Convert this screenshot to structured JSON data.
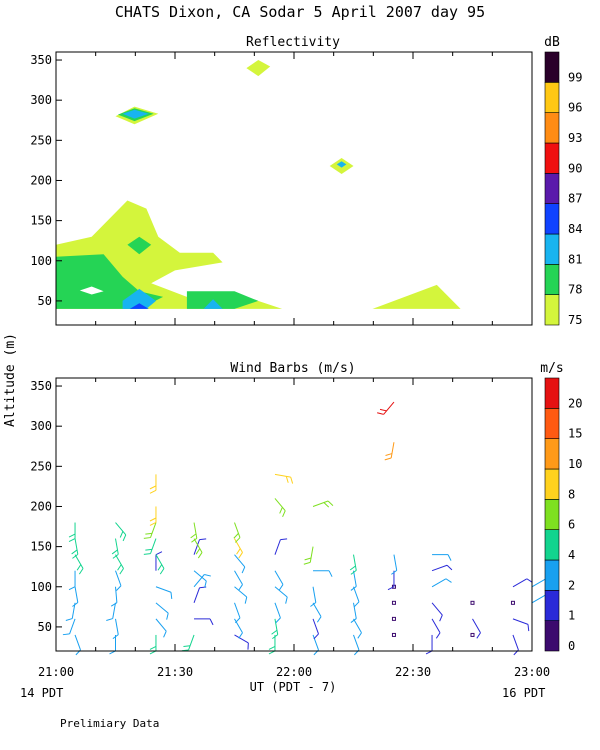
{
  "title": "CHATS Dixon, CA  Sodar    5 April 2007   day  95",
  "footer_left": "14 PDT",
  "footer_right": "16 PDT",
  "xlabel": "UT  (PDT - 7)",
  "ylabel": "Altitude (m)",
  "note": "Prelimiary Data",
  "chart_data": [
    {
      "type": "heatmap",
      "title": "Reflectivity",
      "ylim": [
        20,
        360
      ],
      "xlim": [
        21.0,
        23.0
      ],
      "yticks": [
        "50",
        "100",
        "150",
        "200",
        "250",
        "300",
        "350"
      ],
      "colorbar": {
        "unit": "dB",
        "labels": [
          "75",
          "78",
          "81",
          "84",
          "87",
          "90",
          "93",
          "96",
          "99"
        ],
        "colors": [
          "#d4f53c",
          "#25d455",
          "#18b4f0",
          "#1043ff",
          "#5a1aab",
          "#f01010",
          "#ff8c14",
          "#ffc814",
          "#2a002a"
        ]
      },
      "regions": [
        {
          "level": "75",
          "points": [
            [
              21.0,
              120
            ],
            [
              21.15,
              130
            ],
            [
              21.3,
              175
            ],
            [
              21.38,
              165
            ],
            [
              21.43,
              130
            ],
            [
              21.52,
              110
            ],
            [
              21.66,
              110
            ],
            [
              21.7,
              98
            ],
            [
              21.5,
              88
            ],
            [
              21.4,
              72
            ],
            [
              21.55,
              55
            ],
            [
              21.75,
              60
            ],
            [
              21.95,
              40
            ],
            [
              21.0,
              40
            ]
          ]
        },
        {
          "level": "75",
          "points": [
            [
              22.33,
              40
            ],
            [
              22.6,
              70
            ],
            [
              22.7,
              40
            ]
          ]
        },
        {
          "level": "75",
          "points": [
            [
              22.15,
              218
            ],
            [
              22.2,
              228
            ],
            [
              22.25,
              218
            ],
            [
              22.2,
              208
            ]
          ]
        },
        {
          "level": "75",
          "points": [
            [
              21.8,
              340
            ],
            [
              21.85,
              350
            ],
            [
              21.9,
              342
            ],
            [
              21.85,
              330
            ]
          ]
        },
        {
          "level": "75",
          "points": [
            [
              21.25,
              280
            ],
            [
              21.33,
              292
            ],
            [
              21.43,
              283
            ],
            [
              21.33,
              270
            ]
          ]
        },
        {
          "level": "78",
          "points": [
            [
              21.0,
              105
            ],
            [
              21.2,
              108
            ],
            [
              21.28,
              80
            ],
            [
              21.35,
              62
            ],
            [
              21.45,
              55
            ],
            [
              21.35,
              40
            ],
            [
              21.0,
              40
            ]
          ]
        },
        {
          "level": "78",
          "points": [
            [
              21.3,
              120
            ],
            [
              21.35,
              130
            ],
            [
              21.4,
              120
            ],
            [
              21.35,
              108
            ]
          ]
        },
        {
          "level": "78",
          "points": [
            [
              21.55,
              62
            ],
            [
              21.75,
              62
            ],
            [
              21.85,
              50
            ],
            [
              21.75,
              40
            ],
            [
              21.55,
              40
            ]
          ]
        },
        {
          "level": "78",
          "points": [
            [
              21.26,
              282
            ],
            [
              21.33,
              290
            ],
            [
              21.41,
              283
            ],
            [
              21.33,
              274
            ]
          ]
        },
        {
          "level": "81",
          "points": [
            [
              21.28,
              50
            ],
            [
              21.35,
              65
            ],
            [
              21.42,
              50
            ],
            [
              21.38,
              40
            ],
            [
              21.28,
              40
            ]
          ]
        },
        {
          "level": "81",
          "points": [
            [
              21.62,
              40
            ],
            [
              21.66,
              52
            ],
            [
              21.7,
              40
            ]
          ]
        },
        {
          "level": "81",
          "points": [
            [
              21.28,
              283
            ],
            [
              21.33,
              288
            ],
            [
              21.39,
              283
            ],
            [
              21.33,
              277
            ]
          ]
        },
        {
          "level": "81",
          "points": [
            [
              22.18,
              220
            ],
            [
              22.2,
              224
            ],
            [
              22.22,
              220
            ],
            [
              22.2,
              216
            ]
          ]
        },
        {
          "level": "84",
          "points": [
            [
              21.31,
              40
            ],
            [
              21.35,
              47
            ],
            [
              21.39,
              40
            ]
          ]
        }
      ],
      "holes": [
        {
          "points": [
            [
              21.1,
              63
            ],
            [
              21.15,
              68
            ],
            [
              21.2,
              62
            ],
            [
              21.15,
              58
            ]
          ]
        }
      ]
    },
    {
      "type": "scatter",
      "title": "Wind Barbs (m/s)",
      "ylim": [
        20,
        360
      ],
      "xlim": [
        21.0,
        23.0
      ],
      "yticks": [
        "50",
        "100",
        "150",
        "200",
        "250",
        "300",
        "350"
      ],
      "xticks": [
        "21:00",
        "21:30",
        "22:00",
        "22:30",
        "23:00"
      ],
      "colorbar": {
        "unit": "m/s",
        "labels": [
          "0",
          "1",
          "2",
          "4",
          "6",
          "8",
          "10",
          "15",
          "20"
        ],
        "colors": [
          "#3c0a6e",
          "#2a2ad8",
          "#18a0f0",
          "#12d48e",
          "#7ee020",
          "#ffd21e",
          "#ff9a18",
          "#ff5a12",
          "#e51212"
        ]
      },
      "barbs": [
        {
          "t": 21.08,
          "z": 40,
          "spd": 3,
          "dir": 160
        },
        {
          "t": 21.08,
          "z": 60,
          "spd": 3,
          "dir": 200
        },
        {
          "t": 21.08,
          "z": 80,
          "spd": 3,
          "dir": 190
        },
        {
          "t": 21.08,
          "z": 100,
          "spd": 3,
          "dir": 170
        },
        {
          "t": 21.08,
          "z": 120,
          "spd": 3,
          "dir": 180
        },
        {
          "t": 21.08,
          "z": 140,
          "spd": 4,
          "dir": 150
        },
        {
          "t": 21.08,
          "z": 160,
          "spd": 4,
          "dir": 170
        },
        {
          "t": 21.08,
          "z": 180,
          "spd": 5,
          "dir": 180
        },
        {
          "t": 21.25,
          "z": 40,
          "spd": 3,
          "dir": 180
        },
        {
          "t": 21.25,
          "z": 60,
          "spd": 3,
          "dir": 170
        },
        {
          "t": 21.25,
          "z": 80,
          "spd": 3,
          "dir": 190
        },
        {
          "t": 21.25,
          "z": 100,
          "spd": 3,
          "dir": 175
        },
        {
          "t": 21.25,
          "z": 120,
          "spd": 3,
          "dir": 160
        },
        {
          "t": 21.25,
          "z": 140,
          "spd": 4,
          "dir": 150
        },
        {
          "t": 21.25,
          "z": 160,
          "spd": 4,
          "dir": 170
        },
        {
          "t": 21.25,
          "z": 180,
          "spd": 4,
          "dir": 140
        },
        {
          "t": 21.42,
          "z": 40,
          "spd": 4,
          "dir": 180
        },
        {
          "t": 21.42,
          "z": 60,
          "spd": 3,
          "dir": 140
        },
        {
          "t": 21.42,
          "z": 80,
          "spd": 3,
          "dir": 130
        },
        {
          "t": 21.42,
          "z": 100,
          "spd": 2,
          "dir": 110
        },
        {
          "t": 21.42,
          "z": 120,
          "spd": 1,
          "dir": 0
        },
        {
          "t": 21.42,
          "z": 140,
          "spd": 4,
          "dir": 150
        },
        {
          "t": 21.42,
          "z": 160,
          "spd": 5,
          "dir": 200
        },
        {
          "t": 21.42,
          "z": 180,
          "spd": 6,
          "dir": 200
        },
        {
          "t": 21.42,
          "z": 200,
          "spd": 8,
          "dir": 180
        },
        {
          "t": 21.42,
          "z": 240,
          "spd": 8,
          "dir": 180
        },
        {
          "t": 21.58,
          "z": 40,
          "spd": 4,
          "dir": 200
        },
        {
          "t": 21.58,
          "z": 60,
          "spd": 1,
          "dir": 90
        },
        {
          "t": 21.58,
          "z": 80,
          "spd": 1,
          "dir": 20
        },
        {
          "t": 21.58,
          "z": 100,
          "spd": 2,
          "dir": 40
        },
        {
          "t": 21.58,
          "z": 120,
          "spd": 3,
          "dir": 130
        },
        {
          "t": 21.58,
          "z": 140,
          "spd": 1,
          "dir": 20
        },
        {
          "t": 21.58,
          "z": 160,
          "spd": 6,
          "dir": 150
        },
        {
          "t": 21.58,
          "z": 180,
          "spd": 6,
          "dir": 170
        },
        {
          "t": 21.75,
          "z": 40,
          "spd": 1,
          "dir": 120
        },
        {
          "t": 21.75,
          "z": 60,
          "spd": 3,
          "dir": 150
        },
        {
          "t": 21.75,
          "z": 80,
          "spd": 3,
          "dir": 160
        },
        {
          "t": 21.75,
          "z": 100,
          "spd": 3,
          "dir": 130
        },
        {
          "t": 21.75,
          "z": 120,
          "spd": 3,
          "dir": 150
        },
        {
          "t": 21.75,
          "z": 140,
          "spd": 3,
          "dir": 140
        },
        {
          "t": 21.75,
          "z": 160,
          "spd": 8,
          "dir": 150
        },
        {
          "t": 21.75,
          "z": 180,
          "spd": 6,
          "dir": 160
        },
        {
          "t": 21.92,
          "z": 40,
          "spd": 4,
          "dir": 180
        },
        {
          "t": 21.92,
          "z": 60,
          "spd": 4,
          "dir": 170
        },
        {
          "t": 21.92,
          "z": 80,
          "spd": 2,
          "dir": 160
        },
        {
          "t": 21.92,
          "z": 100,
          "spd": 3,
          "dir": 130
        },
        {
          "t": 21.92,
          "z": 120,
          "spd": 3,
          "dir": 150
        },
        {
          "t": 21.92,
          "z": 140,
          "spd": 1,
          "dir": 20
        },
        {
          "t": 21.92,
          "z": 210,
          "spd": 6,
          "dir": 140
        },
        {
          "t": 21.92,
          "z": 240,
          "spd": 8,
          "dir": 100
        },
        {
          "t": 22.08,
          "z": 40,
          "spd": 3,
          "dir": 160
        },
        {
          "t": 22.08,
          "z": 60,
          "spd": 1,
          "dir": 160
        },
        {
          "t": 22.08,
          "z": 80,
          "spd": 3,
          "dir": 150
        },
        {
          "t": 22.08,
          "z": 100,
          "spd": 3,
          "dir": 170
        },
        {
          "t": 22.08,
          "z": 120,
          "spd": 3,
          "dir": 90
        },
        {
          "t": 22.08,
          "z": 150,
          "spd": 6,
          "dir": 190
        },
        {
          "t": 22.08,
          "z": 200,
          "spd": 6,
          "dir": 70
        },
        {
          "t": 22.25,
          "z": 40,
          "spd": 3,
          "dir": 160
        },
        {
          "t": 22.25,
          "z": 60,
          "spd": 3,
          "dir": 150
        },
        {
          "t": 22.25,
          "z": 80,
          "spd": 3,
          "dir": 170
        },
        {
          "t": 22.25,
          "z": 100,
          "spd": 3,
          "dir": 160
        },
        {
          "t": 22.25,
          "z": 120,
          "spd": 3,
          "dir": 170
        },
        {
          "t": 22.25,
          "z": 140,
          "spd": 4,
          "dir": 170
        },
        {
          "t": 22.42,
          "z": 40,
          "spd": 0,
          "dir": 0
        },
        {
          "t": 22.42,
          "z": 60,
          "spd": 0,
          "dir": 0
        },
        {
          "t": 22.42,
          "z": 80,
          "spd": 0,
          "dir": 0
        },
        {
          "t": 22.42,
          "z": 100,
          "spd": 0,
          "dir": 0
        },
        {
          "t": 22.42,
          "z": 120,
          "spd": 1,
          "dir": 180
        },
        {
          "t": 22.42,
          "z": 140,
          "spd": 3,
          "dir": 170
        },
        {
          "t": 22.42,
          "z": 280,
          "spd": 10,
          "dir": 190
        },
        {
          "t": 22.42,
          "z": 330,
          "spd": 20,
          "dir": 220
        },
        {
          "t": 22.58,
          "z": 40,
          "spd": 1,
          "dir": 180
        },
        {
          "t": 22.58,
          "z": 60,
          "spd": 1,
          "dir": 150
        },
        {
          "t": 22.58,
          "z": 80,
          "spd": 1,
          "dir": 140
        },
        {
          "t": 22.58,
          "z": 100,
          "spd": 2,
          "dir": 60
        },
        {
          "t": 22.58,
          "z": 120,
          "spd": 1,
          "dir": 70
        },
        {
          "t": 22.58,
          "z": 140,
          "spd": 3,
          "dir": 90
        },
        {
          "t": 22.75,
          "z": 40,
          "spd": 0,
          "dir": 0
        },
        {
          "t": 22.75,
          "z": 60,
          "spd": 1,
          "dir": 150
        },
        {
          "t": 22.75,
          "z": 80,
          "spd": 0,
          "dir": 0
        },
        {
          "t": 22.92,
          "z": 40,
          "spd": 1,
          "dir": 160
        },
        {
          "t": 22.92,
          "z": 60,
          "spd": 1,
          "dir": 110
        },
        {
          "t": 22.92,
          "z": 80,
          "spd": 0,
          "dir": 0
        },
        {
          "t": 22.92,
          "z": 100,
          "spd": 1,
          "dir": 60
        },
        {
          "t": 23.0,
          "z": 80,
          "spd": 2,
          "dir": 60
        },
        {
          "t": 23.0,
          "z": 100,
          "spd": 2,
          "dir": 60
        }
      ]
    }
  ]
}
